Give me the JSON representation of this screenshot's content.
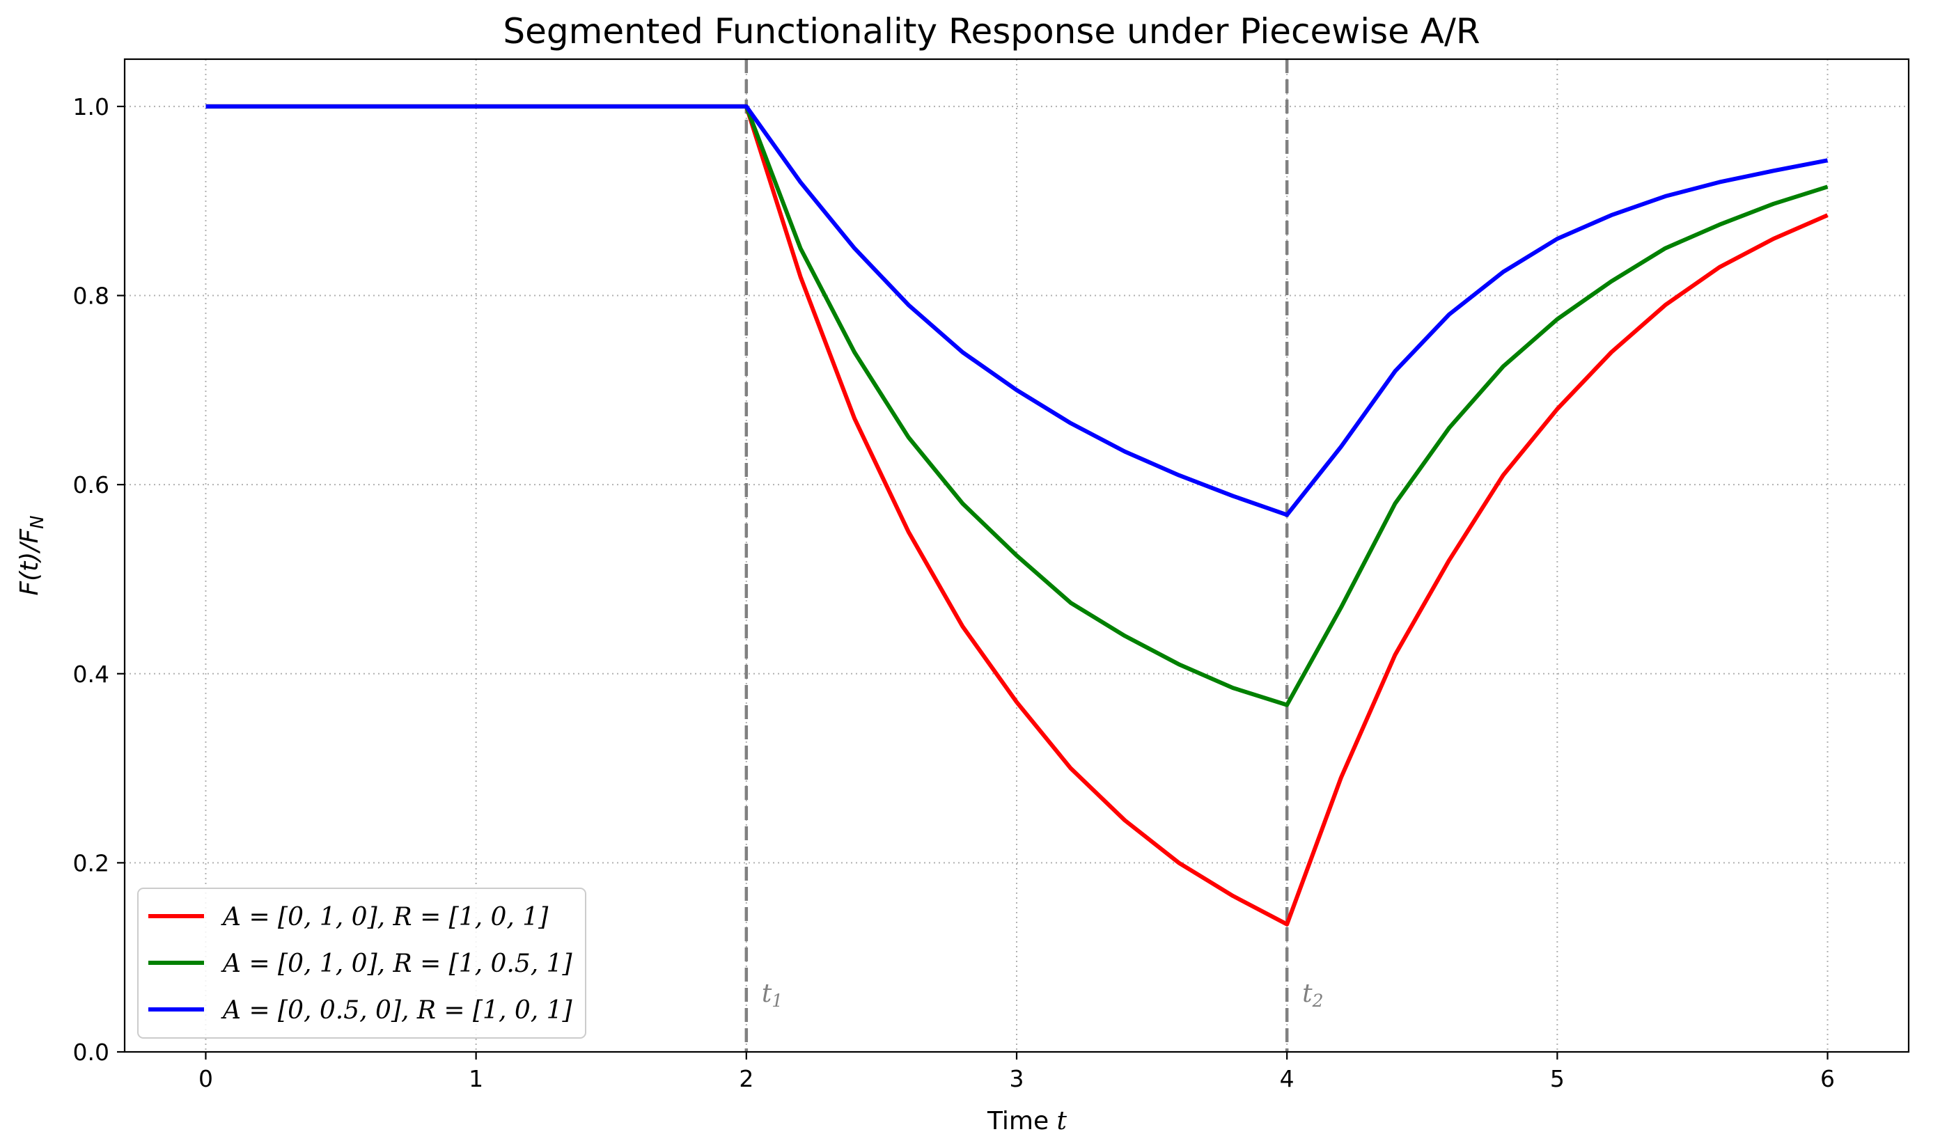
{
  "chart_data": {
    "type": "line",
    "title": "Segmented Functionality Response under Piecewise A/R",
    "xlabel": "Time t",
    "ylabel": "F(t)/F_N",
    "xlim": [
      -0.3,
      6.3
    ],
    "ylim": [
      0.0,
      1.05
    ],
    "xticks": [
      0,
      1,
      2,
      3,
      4,
      5,
      6
    ],
    "xtick_labels": [
      "0",
      "1",
      "2",
      "3",
      "4",
      "5",
      "6"
    ],
    "yticks": [
      0.0,
      0.2,
      0.4,
      0.6,
      0.8,
      1.0
    ],
    "ytick_labels": [
      "0.0",
      "0.2",
      "0.4",
      "0.6",
      "0.8",
      "1.0"
    ],
    "grid": true,
    "legend_position": "lower-left",
    "vertical_markers": [
      {
        "x": 2,
        "label": "t1",
        "label_main": "t",
        "label_sub": "1"
      },
      {
        "x": 4,
        "label": "t2",
        "label_main": "t",
        "label_sub": "2"
      }
    ],
    "x": [
      0,
      0.5,
      1,
      1.5,
      2,
      2.2,
      2.4,
      2.6,
      2.8,
      3,
      3.2,
      3.4,
      3.6,
      3.8,
      4,
      4.2,
      4.4,
      4.6,
      4.8,
      5,
      5.2,
      5.4,
      5.6,
      5.8,
      6
    ],
    "series": [
      {
        "name": "A = [0, 1, 0], R = [1, 0, 1]",
        "color": "#ff0000",
        "values": [
          1.0,
          1.0,
          1.0,
          1.0,
          1.0,
          0.82,
          0.67,
          0.55,
          0.45,
          0.37,
          0.3,
          0.245,
          0.2,
          0.165,
          0.135,
          0.29,
          0.42,
          0.52,
          0.61,
          0.68,
          0.74,
          0.79,
          0.83,
          0.86,
          0.885
        ]
      },
      {
        "name": "A = [0, 1, 0], R = [1, 0.5, 1]",
        "color": "#008000",
        "values": [
          1.0,
          1.0,
          1.0,
          1.0,
          1.0,
          0.85,
          0.74,
          0.65,
          0.58,
          0.525,
          0.475,
          0.44,
          0.41,
          0.385,
          0.367,
          0.47,
          0.58,
          0.66,
          0.725,
          0.775,
          0.815,
          0.85,
          0.875,
          0.897,
          0.915
        ]
      },
      {
        "name": "A = [0, 0.5, 0], R = [1, 0, 1]",
        "color": "#0000ff",
        "values": [
          1.0,
          1.0,
          1.0,
          1.0,
          1.0,
          0.92,
          0.85,
          0.79,
          0.74,
          0.7,
          0.665,
          0.635,
          0.61,
          0.588,
          0.568,
          0.64,
          0.72,
          0.78,
          0.825,
          0.86,
          0.885,
          0.905,
          0.92,
          0.932,
          0.943
        ]
      }
    ],
    "legend_entries": [
      {
        "a_part": "A = [0, 1, 0],",
        "r_part": "R = [1, 0, 1]"
      },
      {
        "a_part": "A = [0, 1, 0],",
        "r_part": "R = [1, 0.5, 1]"
      },
      {
        "a_part": "A = [0, 0.5, 0],",
        "r_part": "R = [1, 0, 1]"
      }
    ],
    "ylabel_parts": {
      "main": "F(t)/F",
      "sub": "N"
    },
    "xlabel_parts": {
      "text": "Time",
      "var": "t"
    }
  }
}
